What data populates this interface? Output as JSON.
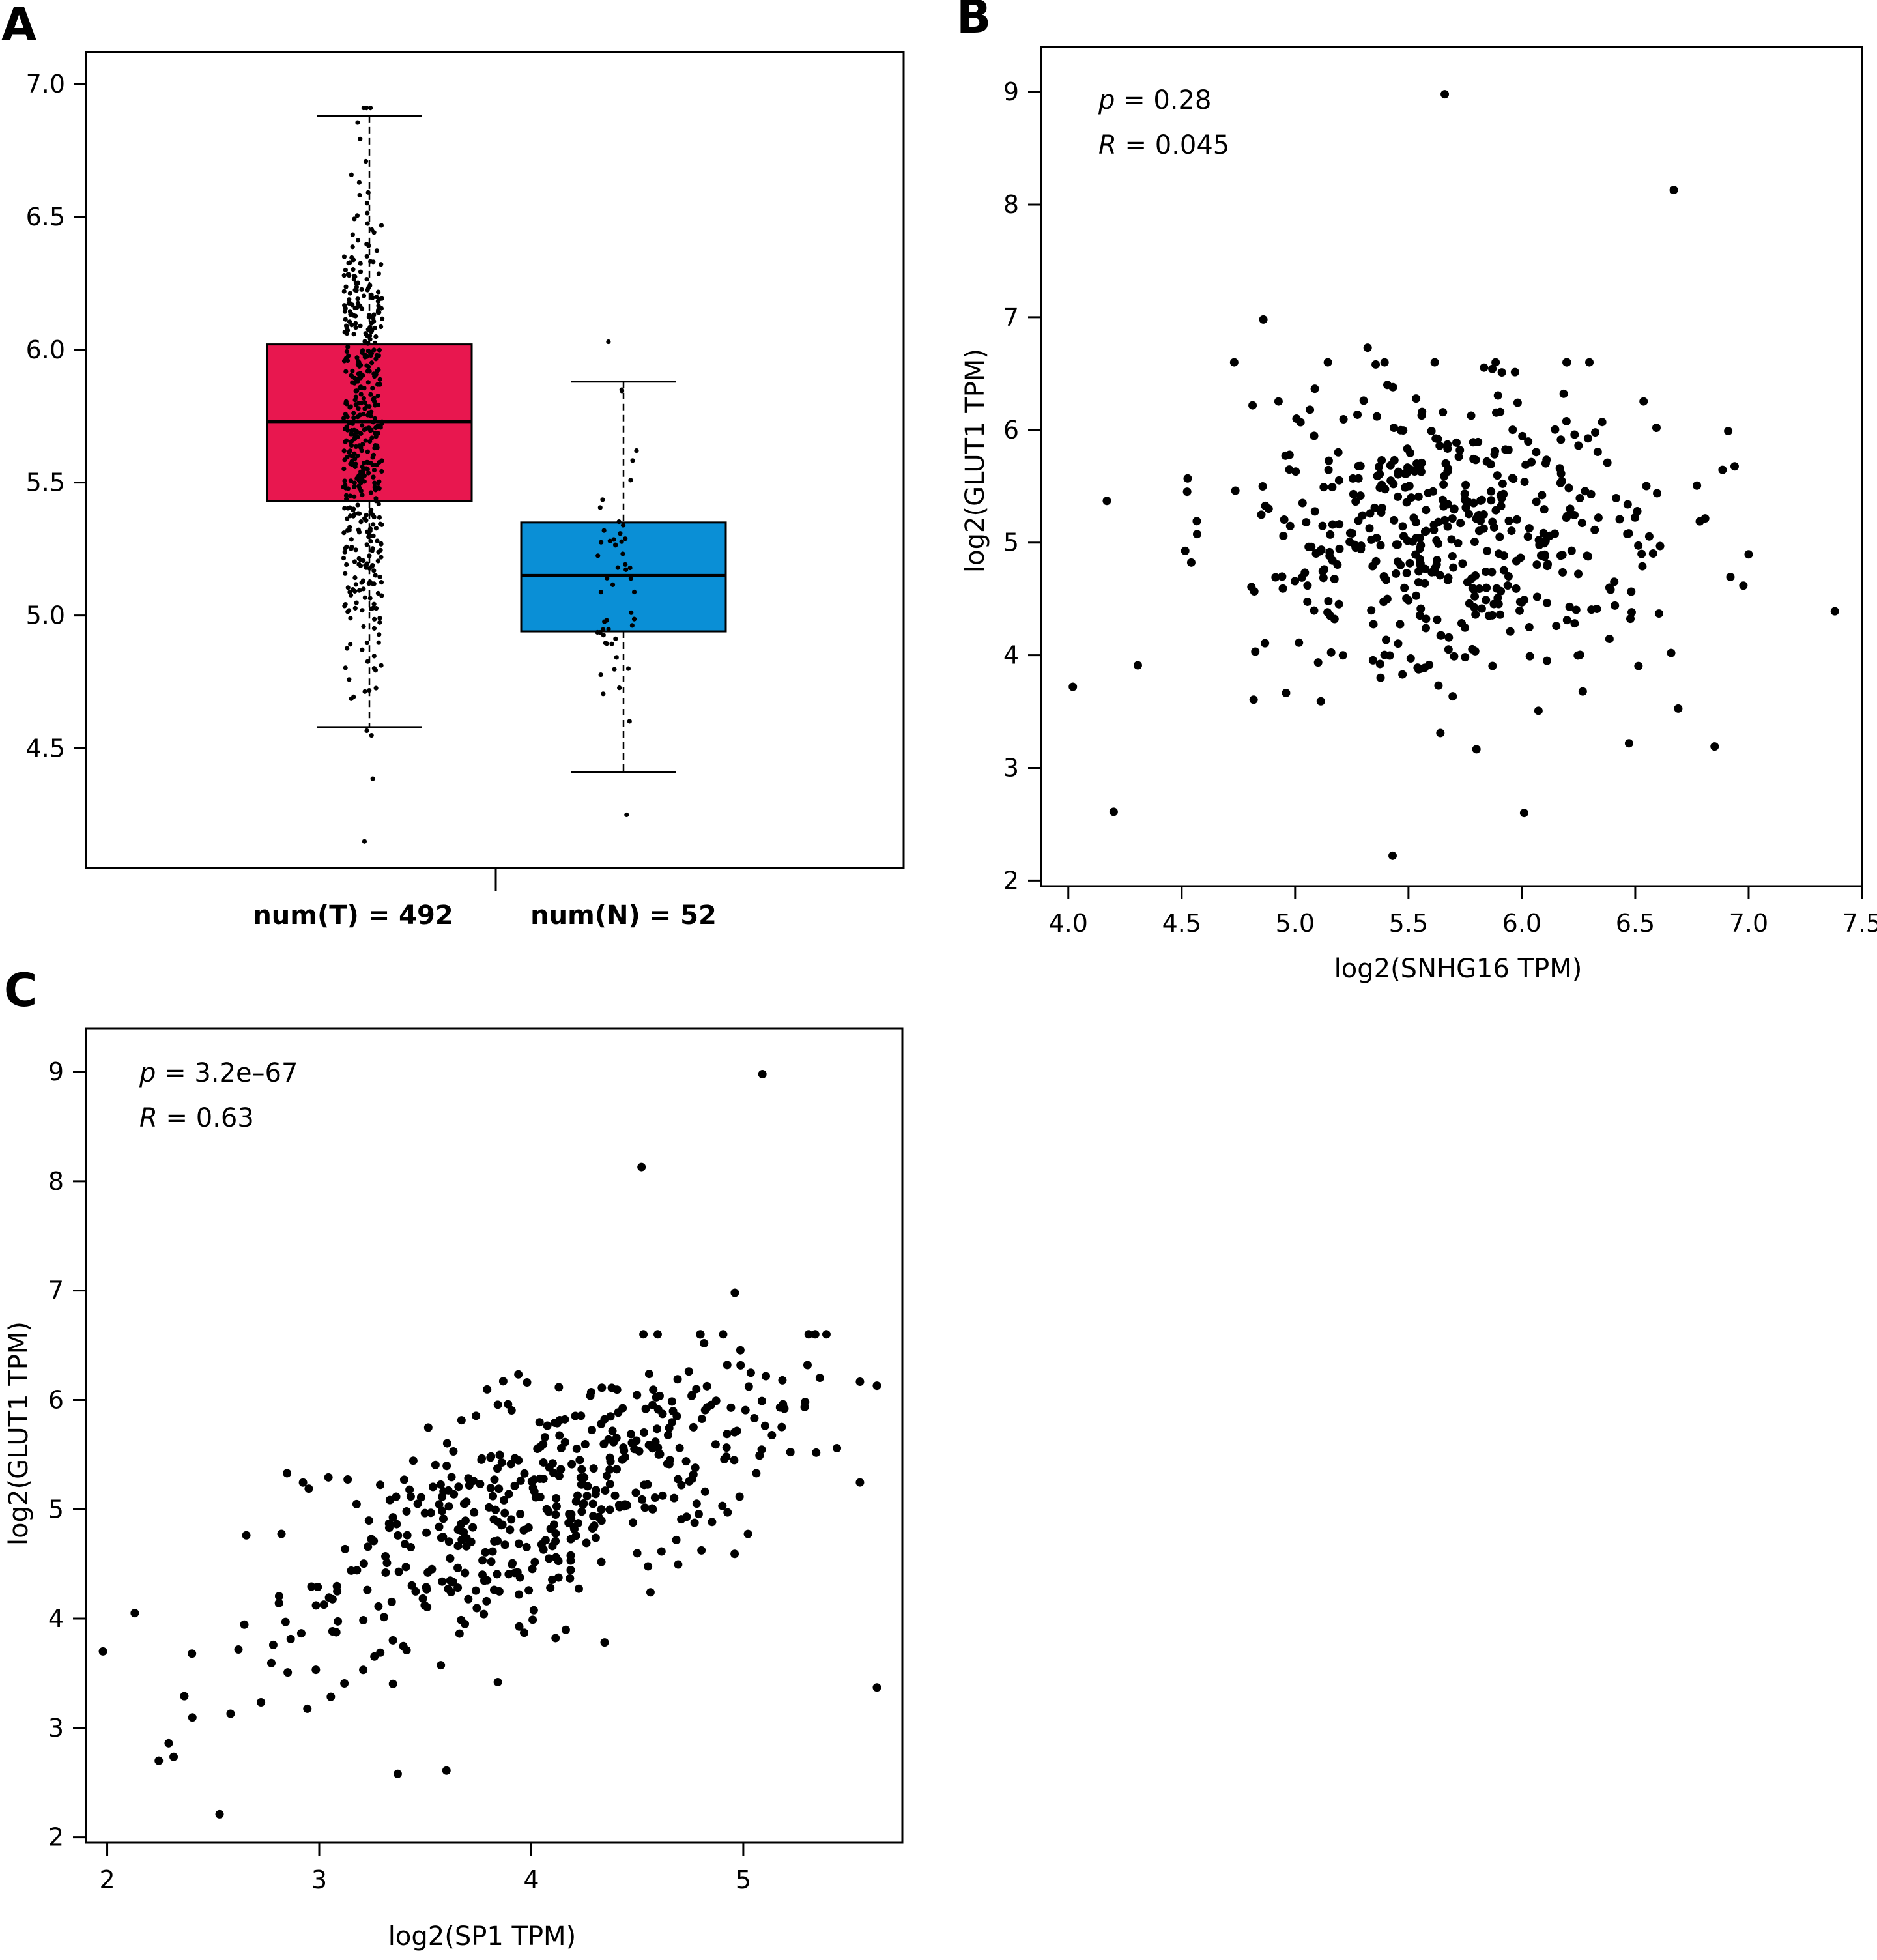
{
  "panels": {
    "A": {
      "letter": "A"
    },
    "B": {
      "letter": "B"
    },
    "C": {
      "letter": "C"
    }
  },
  "chart_data": [
    {
      "panel": "A",
      "type": "box",
      "title": "",
      "xlabel": "",
      "ylabel": "",
      "ylim": [
        4.05,
        7.12
      ],
      "yticks": [
        4.5,
        5.0,
        5.5,
        6.0,
        6.5,
        7.0
      ],
      "ytick_labels": [
        "4.5",
        "5.0",
        "5.5",
        "6.0",
        "6.5",
        "7.0"
      ],
      "grid": false,
      "categories": [
        "num(T) = 492",
        "num(N) = 52"
      ],
      "boxes": [
        {
          "label": "num(T) = 492",
          "n": 492,
          "color": "#e8174f",
          "q1": 5.43,
          "median": 5.73,
          "q3": 6.02,
          "whisker_low": 4.58,
          "whisker_high": 6.88,
          "points_range": [
            4.15,
            6.91
          ]
        },
        {
          "label": "num(N) = 52",
          "n": 52,
          "color": "#0a8fd6",
          "q1": 4.94,
          "median": 5.15,
          "q3": 5.35,
          "whisker_low": 4.41,
          "whisker_high": 5.88,
          "points_range": [
            4.25,
            6.03
          ]
        }
      ]
    },
    {
      "panel": "B",
      "type": "scatter",
      "title": "",
      "xlabel": "log2(SNHG16 TPM)",
      "ylabel": "log2(GLUT1 TPM)",
      "xlim": [
        3.88,
        7.5
      ],
      "ylim": [
        1.95,
        9.4
      ],
      "xticks": [
        4.0,
        4.5,
        5.0,
        5.5,
        6.0,
        6.5,
        7.0,
        7.5
      ],
      "xtick_labels": [
        "4.0",
        "4.5",
        "5.0",
        "5.5",
        "6.0",
        "6.5",
        "7.0",
        "7.5"
      ],
      "yticks": [
        2,
        3,
        4,
        5,
        6,
        7,
        8,
        9
      ],
      "ytick_labels": [
        "2",
        "3",
        "4",
        "5",
        "6",
        "7",
        "8",
        "9"
      ],
      "grid": false,
      "annotations": [
        {
          "symbol": "p",
          "text": " = 0.28"
        },
        {
          "symbol": "R",
          "text": " = 0.045"
        }
      ],
      "n_points": 492,
      "highlight_points": [
        {
          "x": 5.66,
          "y": 8.98
        },
        {
          "x": 6.67,
          "y": 8.13
        },
        {
          "x": 4.86,
          "y": 6.98
        },
        {
          "x": 7.38,
          "y": 4.39
        },
        {
          "x": 4.02,
          "y": 3.72
        },
        {
          "x": 4.2,
          "y": 2.61
        },
        {
          "x": 5.43,
          "y": 2.22
        },
        {
          "x": 6.01,
          "y": 2.6
        },
        {
          "x": 6.85,
          "y": 3.19
        },
        {
          "x": 6.91,
          "y": 5.99
        },
        {
          "x": 4.17,
          "y": 5.37
        },
        {
          "x": 5.32,
          "y": 6.73
        }
      ]
    },
    {
      "panel": "C",
      "type": "scatter",
      "title": "",
      "xlabel": "log2(SP1 TPM)",
      "ylabel": "log2(GLUT1 TPM)",
      "xlim": [
        1.9,
        5.75
      ],
      "ylim": [
        1.95,
        9.4
      ],
      "xticks": [
        2,
        3,
        4,
        5
      ],
      "xtick_labels": [
        "2",
        "3",
        "4",
        "5"
      ],
      "yticks": [
        2,
        3,
        4,
        5,
        6,
        7,
        8,
        9
      ],
      "ytick_labels": [
        "2",
        "3",
        "4",
        "5",
        "6",
        "7",
        "8",
        "9"
      ],
      "grid": false,
      "annotations": [
        {
          "symbol": "p",
          "text": " = 3.2e–67"
        },
        {
          "symbol": "R",
          "text": " = 0.63"
        }
      ],
      "n_points": 492,
      "highlight_points": [
        {
          "x": 5.09,
          "y": 8.98
        },
        {
          "x": 4.52,
          "y": 8.13
        },
        {
          "x": 4.96,
          "y": 6.98
        },
        {
          "x": 5.63,
          "y": 3.37
        },
        {
          "x": 1.98,
          "y": 3.7
        },
        {
          "x": 2.53,
          "y": 2.21
        },
        {
          "x": 3.37,
          "y": 2.58
        },
        {
          "x": 3.6,
          "y": 2.61
        },
        {
          "x": 5.63,
          "y": 6.13
        },
        {
          "x": 2.29,
          "y": 2.86
        },
        {
          "x": 2.13,
          "y": 4.05
        }
      ]
    }
  ]
}
